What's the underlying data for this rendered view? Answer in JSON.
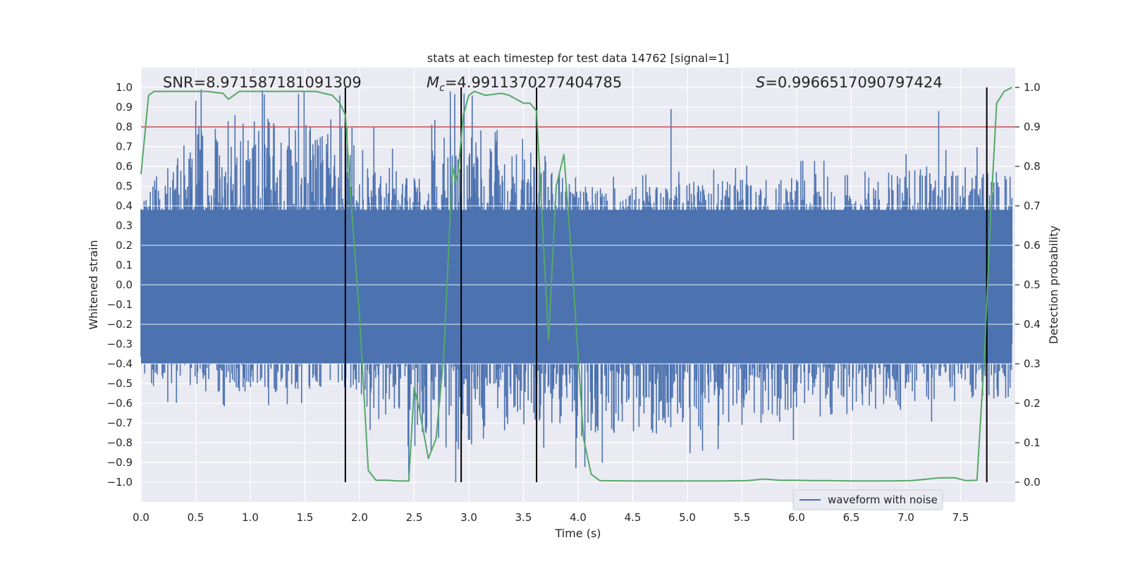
{
  "chart_data": {
    "type": "line",
    "title": "stats at each timestep for test data 14762 [signal=1]",
    "xlabel": "Time (s)",
    "ylabel_left": "Whitened strain",
    "ylabel_right": "Detection probability",
    "xlim": [
      0.0,
      8.0
    ],
    "ylim_left": [
      -1.1,
      1.1
    ],
    "ylim_right": [
      -0.05,
      1.05
    ],
    "x_ticks": [
      "0.0",
      "0.5",
      "1.0",
      "1.5",
      "2.0",
      "2.5",
      "3.0",
      "3.5",
      "4.0",
      "4.5",
      "5.0",
      "5.5",
      "6.0",
      "6.5",
      "7.0",
      "7.5"
    ],
    "y_left_ticks": [
      "1.0",
      "0.9",
      "0.8",
      "0.7",
      "0.6",
      "0.5",
      "0.4",
      "0.3",
      "0.2",
      "0.1",
      "0.0",
      "−0.1",
      "−0.2",
      "−0.3",
      "−0.4",
      "−0.5",
      "−0.6",
      "−0.7",
      "−0.8",
      "−0.9",
      "−1.0"
    ],
    "y_right_ticks": [
      "1.0",
      "0.9",
      "0.8",
      "0.7",
      "0.6",
      "0.5",
      "0.4",
      "0.3",
      "0.2",
      "0.1",
      "0.0"
    ],
    "grid": true,
    "legend": {
      "position": "lower-right",
      "entries": [
        "waveform with noise"
      ]
    },
    "annotations": {
      "snr": "SNR=8.971587181091309",
      "mc_symbol": "M",
      "mc_sub": "c",
      "mc_value": "=4.9911370277404785",
      "s_symbol": "S",
      "s_value": "=0.9966517090797424"
    },
    "threshold": {
      "value": 0.9,
      "axis": "right",
      "color": "#c44e52"
    },
    "vertical_markers": [
      1.87,
      2.93,
      3.62,
      7.74
    ],
    "colors": {
      "waveform": "#4c72b0",
      "probability": "#55a868",
      "markers": "#000000",
      "background": "#eaeaf2",
      "grid": "#ffffff"
    },
    "series": [
      {
        "name": "waveform with noise",
        "axis": "left",
        "envelope": {
          "x": [
            0.0,
            0.55,
            1.87,
            2.45,
            2.83,
            2.93,
            3.6,
            3.98,
            7.97
          ],
          "peak_high": [
            0.5,
            0.99,
            0.98,
            0.6,
            0.98,
            0.98,
            0.85,
            0.53,
            0.72
          ],
          "peak_low": [
            -0.58,
            -0.62,
            -0.6,
            -0.96,
            -1.0,
            -1.0,
            -0.8,
            -0.93,
            -0.65
          ]
        }
      },
      {
        "name": "",
        "axis": "right",
        "x": [
          0.0,
          0.07,
          0.12,
          0.2,
          0.4,
          0.6,
          0.75,
          0.8,
          0.9,
          1.0,
          1.2,
          1.4,
          1.6,
          1.75,
          1.82,
          1.87,
          1.92,
          2.0,
          2.08,
          2.15,
          2.25,
          2.35,
          2.45,
          2.5,
          2.55,
          2.63,
          2.7,
          2.77,
          2.85,
          2.88,
          2.9,
          2.95,
          3.0,
          3.05,
          3.15,
          3.3,
          3.37,
          3.5,
          3.56,
          3.62,
          3.68,
          3.73,
          3.8,
          3.87,
          3.95,
          4.0,
          4.05,
          4.12,
          4.2,
          4.5,
          5.0,
          5.3,
          5.55,
          5.7,
          5.85,
          6.0,
          6.15,
          6.3,
          6.5,
          6.8,
          7.05,
          7.2,
          7.3,
          7.37,
          7.45,
          7.55,
          7.65,
          7.72,
          7.78,
          7.83,
          7.9,
          7.97
        ],
        "y": [
          0.78,
          0.98,
          0.99,
          0.99,
          0.99,
          0.99,
          0.985,
          0.97,
          0.99,
          0.99,
          0.99,
          0.99,
          0.99,
          0.98,
          0.96,
          0.93,
          0.72,
          0.42,
          0.03,
          0.005,
          0.005,
          0.003,
          0.003,
          0.24,
          0.18,
          0.06,
          0.11,
          0.32,
          0.8,
          0.76,
          0.78,
          0.93,
          0.98,
          0.99,
          0.98,
          0.985,
          0.98,
          0.96,
          0.96,
          0.94,
          0.62,
          0.36,
          0.75,
          0.83,
          0.53,
          0.32,
          0.11,
          0.02,
          0.004,
          0.003,
          0.003,
          0.003,
          0.004,
          0.008,
          0.005,
          0.005,
          0.004,
          0.004,
          0.003,
          0.003,
          0.004,
          0.008,
          0.011,
          0.011,
          0.011,
          0.004,
          0.005,
          0.33,
          0.7,
          0.96,
          0.99,
          1.0
        ]
      }
    ]
  }
}
